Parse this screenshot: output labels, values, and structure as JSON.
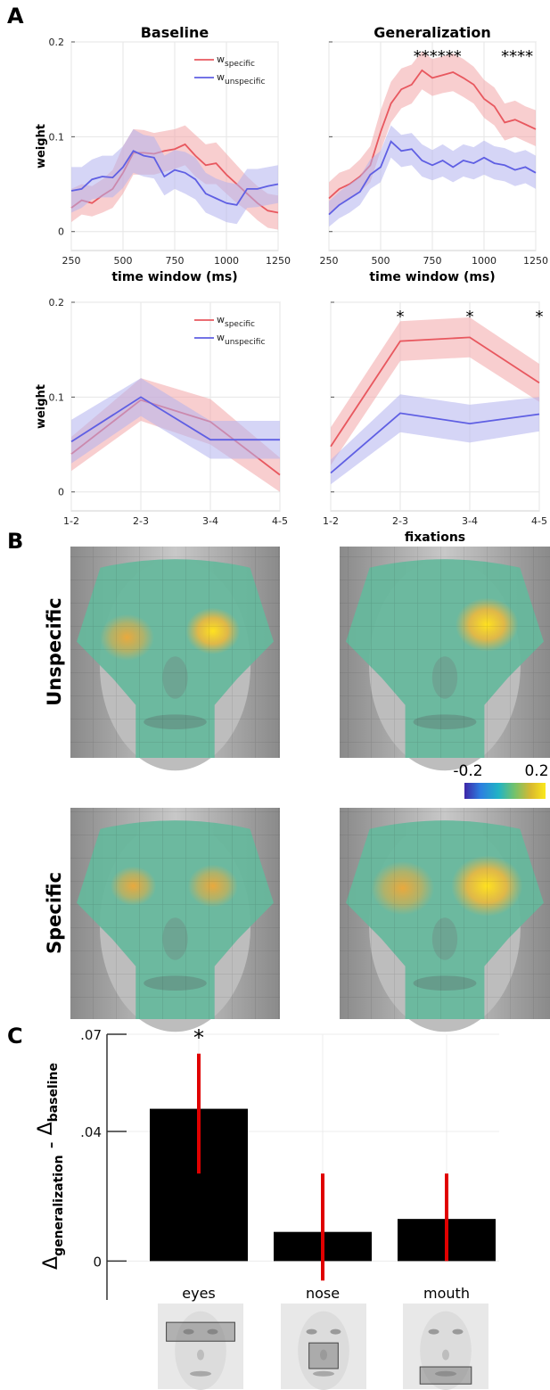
{
  "panel_letters": {
    "a": "A",
    "b": "B",
    "c": "C"
  },
  "colors": {
    "specific": "#e8585f",
    "specific_band": "#f2a6a8",
    "unspecific": "#5f5fe3",
    "unspecific_band": "#b2b2ee",
    "bar": "#000000",
    "errorbar": "#e00000",
    "grid": "#e6e6e6",
    "axis": "#333333",
    "colormap": [
      "#3e26a8",
      "#2c7fe0",
      "#21b3c5",
      "#74c26b",
      "#d9b92f",
      "#fbe81b"
    ]
  },
  "panel_b": {
    "row_labels": [
      "Unspecific",
      "Specific"
    ],
    "colorbar": {
      "min_label": "-0.2",
      "max_label": "0.2",
      "colormap": "parula"
    }
  },
  "chart_data": [
    {
      "id": "A-baseline-time",
      "type": "line",
      "title": "Baseline",
      "xlabel": "time window  (ms)",
      "ylabel": "weight",
      "x": [
        250,
        300,
        350,
        400,
        450,
        500,
        550,
        600,
        650,
        700,
        750,
        800,
        850,
        900,
        950,
        1000,
        1050,
        1100,
        1150,
        1200,
        1250
      ],
      "xticks": [
        "250",
        "500",
        "750",
        "1000",
        "1250"
      ],
      "yticks": [
        "0",
        "0.1",
        "0.2"
      ],
      "ylim": [
        -0.02,
        0.2
      ],
      "legend": [
        "w_specific",
        "w_unspecific"
      ],
      "legend_position": "top-right",
      "series": [
        {
          "name": "w_specific",
          "key": "specific",
          "values": [
            0.025,
            0.033,
            0.03,
            0.038,
            0.045,
            0.062,
            0.083,
            0.083,
            0.082,
            0.085,
            0.087,
            0.092,
            0.08,
            0.07,
            0.072,
            0.06,
            0.05,
            0.04,
            0.03,
            0.022,
            0.02
          ],
          "lower": [
            0.01,
            0.018,
            0.016,
            0.02,
            0.025,
            0.04,
            0.06,
            0.06,
            0.06,
            0.063,
            0.066,
            0.07,
            0.058,
            0.05,
            0.05,
            0.04,
            0.03,
            0.022,
            0.012,
            0.004,
            0.002
          ],
          "upper": [
            0.045,
            0.05,
            0.048,
            0.055,
            0.065,
            0.09,
            0.108,
            0.107,
            0.104,
            0.106,
            0.108,
            0.112,
            0.102,
            0.092,
            0.094,
            0.082,
            0.07,
            0.058,
            0.048,
            0.04,
            0.038
          ]
        },
        {
          "name": "w_unspecific",
          "key": "unspecific",
          "values": [
            0.043,
            0.045,
            0.055,
            0.058,
            0.057,
            0.068,
            0.085,
            0.08,
            0.078,
            0.058,
            0.065,
            0.062,
            0.055,
            0.04,
            0.035,
            0.03,
            0.028,
            0.045,
            0.045,
            0.048,
            0.05
          ],
          "lower": [
            0.02,
            0.025,
            0.034,
            0.036,
            0.036,
            0.046,
            0.062,
            0.058,
            0.056,
            0.038,
            0.045,
            0.04,
            0.034,
            0.02,
            0.015,
            0.01,
            0.008,
            0.025,
            0.026,
            0.028,
            0.03
          ],
          "upper": [
            0.068,
            0.068,
            0.076,
            0.08,
            0.08,
            0.09,
            0.108,
            0.102,
            0.1,
            0.08,
            0.086,
            0.084,
            0.078,
            0.062,
            0.056,
            0.052,
            0.05,
            0.066,
            0.066,
            0.068,
            0.07
          ]
        }
      ],
      "annotations": []
    },
    {
      "id": "A-generalization-time",
      "type": "line",
      "title": "Generalization",
      "xlabel": "time window (ms)",
      "ylabel": "",
      "x": [
        250,
        300,
        350,
        400,
        450,
        500,
        550,
        600,
        650,
        700,
        750,
        800,
        850,
        900,
        950,
        1000,
        1050,
        1100,
        1150,
        1200,
        1250
      ],
      "xticks": [
        "250",
        "500",
        "750",
        "1000",
        "1250"
      ],
      "yticks": [],
      "ylim": [
        -0.02,
        0.2
      ],
      "series": [
        {
          "name": "w_specific",
          "key": "specific",
          "values": [
            0.035,
            0.045,
            0.05,
            0.058,
            0.07,
            0.105,
            0.135,
            0.15,
            0.155,
            0.17,
            0.162,
            0.165,
            0.168,
            0.162,
            0.155,
            0.14,
            0.132,
            0.115,
            0.118,
            0.113,
            0.108
          ],
          "lower": [
            0.018,
            0.028,
            0.034,
            0.042,
            0.052,
            0.085,
            0.115,
            0.13,
            0.135,
            0.15,
            0.143,
            0.146,
            0.148,
            0.142,
            0.135,
            0.12,
            0.112,
            0.096,
            0.1,
            0.095,
            0.09
          ],
          "upper": [
            0.052,
            0.062,
            0.066,
            0.076,
            0.09,
            0.128,
            0.158,
            0.172,
            0.176,
            0.19,
            0.182,
            0.185,
            0.188,
            0.182,
            0.174,
            0.16,
            0.152,
            0.135,
            0.138,
            0.132,
            0.128
          ]
        },
        {
          "name": "w_unspecific",
          "key": "unspecific",
          "values": [
            0.018,
            0.028,
            0.035,
            0.042,
            0.06,
            0.068,
            0.095,
            0.085,
            0.087,
            0.075,
            0.07,
            0.075,
            0.068,
            0.075,
            0.072,
            0.078,
            0.072,
            0.07,
            0.065,
            0.068,
            0.062
          ],
          "lower": [
            0.005,
            0.014,
            0.02,
            0.028,
            0.045,
            0.052,
            0.078,
            0.068,
            0.07,
            0.058,
            0.054,
            0.058,
            0.052,
            0.058,
            0.055,
            0.06,
            0.055,
            0.053,
            0.048,
            0.051,
            0.045
          ],
          "upper": [
            0.032,
            0.042,
            0.05,
            0.058,
            0.076,
            0.085,
            0.112,
            0.102,
            0.104,
            0.092,
            0.086,
            0.092,
            0.085,
            0.092,
            0.089,
            0.096,
            0.09,
            0.088,
            0.083,
            0.086,
            0.08
          ]
        }
      ],
      "annotations": [
        {
          "text": "******",
          "x": 775
        },
        {
          "text": "****",
          "x": 1160
        }
      ]
    },
    {
      "id": "A-baseline-fixations",
      "type": "line",
      "title": "",
      "xlabel": "",
      "ylabel": "weight",
      "categories": [
        "1-2",
        "2-3",
        "3-4",
        "4-5"
      ],
      "yticks": [
        "0",
        "0.1",
        "0.2"
      ],
      "ylim": [
        -0.02,
        0.2
      ],
      "legend": [
        "w_specific",
        "w_unspecific"
      ],
      "legend_position": "top-right",
      "series": [
        {
          "name": "w_specific",
          "key": "specific",
          "values": [
            0.04,
            0.097,
            0.074,
            0.018
          ],
          "lower": [
            0.022,
            0.075,
            0.05,
            0.0
          ],
          "upper": [
            0.058,
            0.12,
            0.098,
            0.036
          ]
        },
        {
          "name": "w_unspecific",
          "key": "unspecific",
          "values": [
            0.053,
            0.1,
            0.055,
            0.055
          ],
          "lower": [
            0.03,
            0.08,
            0.035,
            0.035
          ],
          "upper": [
            0.076,
            0.12,
            0.075,
            0.075
          ]
        }
      ],
      "annotations": []
    },
    {
      "id": "A-generalization-fixations",
      "type": "line",
      "title": "",
      "xlabel": "fixations",
      "ylabel": "",
      "categories": [
        "1-2",
        "2-3",
        "3-4",
        "4-5"
      ],
      "yticks": [],
      "ylim": [
        -0.02,
        0.2
      ],
      "series": [
        {
          "name": "w_specific",
          "key": "specific",
          "values": [
            0.048,
            0.159,
            0.163,
            0.115
          ],
          "lower": [
            0.028,
            0.138,
            0.142,
            0.095
          ],
          "upper": [
            0.068,
            0.18,
            0.184,
            0.135
          ]
        },
        {
          "name": "w_unspecific",
          "key": "unspecific",
          "values": [
            0.02,
            0.083,
            0.072,
            0.082
          ],
          "lower": [
            0.008,
            0.063,
            0.052,
            0.064
          ],
          "upper": [
            0.034,
            0.103,
            0.092,
            0.1
          ]
        }
      ],
      "annotations": [
        {
          "text": "*",
          "category": "2-3"
        },
        {
          "text": "*",
          "category": "3-4"
        },
        {
          "text": "*",
          "category": "4-5"
        }
      ]
    },
    {
      "id": "C-bars",
      "type": "bar",
      "ylabel": "Δ_generalization - Δ_baseline",
      "categories": [
        "eyes",
        "nose",
        "mouth"
      ],
      "values": [
        0.047,
        0.009,
        0.013
      ],
      "errors_low": [
        0.027,
        -0.006,
        0.0
      ],
      "errors_high": [
        0.064,
        0.027,
        0.027
      ],
      "yticks": [
        ".07",
        ".04",
        "0"
      ],
      "ylim": [
        -0.012,
        0.07
      ],
      "annotations": [
        {
          "text": "*",
          "category": "eyes"
        }
      ]
    }
  ]
}
